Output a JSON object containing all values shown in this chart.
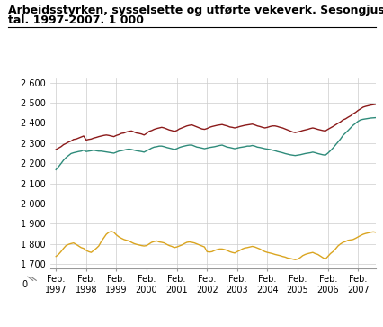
{
  "title_line1": "Arbeidsstyrken, sysselsette og utførte vekeverk. Sesongjusterte",
  "title_line2": "tal. 1997-2007. 1 000",
  "title_fontsize": 9.0,
  "ylim": [
    1680,
    2620
  ],
  "yticks": [
    1700,
    1800,
    1900,
    2000,
    2100,
    2200,
    2300,
    2400,
    2500,
    2600
  ],
  "ytick_labels": [
    "1 700",
    "1 800",
    "1 900",
    "2 000",
    "2 100",
    "2 200",
    "2 300",
    "2 400",
    "2 500",
    "2 600"
  ],
  "y0_label": "0",
  "xtick_years": [
    1997,
    1998,
    1999,
    2000,
    2001,
    2002,
    2003,
    2004,
    2005,
    2006,
    2007
  ],
  "line_arbeidsstyrken_color": "#8B1A1A",
  "line_sysselsette_color": "#2E8B7A",
  "line_vekeverk_color": "#DAA520",
  "legend_labels": [
    "Arbeidsstyrken",
    "Sysselsette",
    "Utførte vekeverk"
  ],
  "background_color": "#ffffff",
  "grid_color": "#cccccc",
  "arbeidsstyrken": [
    2268,
    2275,
    2282,
    2292,
    2298,
    2305,
    2310,
    2318,
    2320,
    2325,
    2330,
    2335,
    2315,
    2318,
    2320,
    2325,
    2328,
    2332,
    2335,
    2338,
    2340,
    2338,
    2335,
    2332,
    2338,
    2342,
    2348,
    2350,
    2355,
    2358,
    2360,
    2355,
    2350,
    2348,
    2345,
    2340,
    2348,
    2358,
    2362,
    2368,
    2372,
    2375,
    2378,
    2375,
    2370,
    2365,
    2362,
    2358,
    2362,
    2370,
    2375,
    2380,
    2385,
    2388,
    2390,
    2385,
    2380,
    2375,
    2370,
    2368,
    2372,
    2378,
    2382,
    2385,
    2388,
    2390,
    2392,
    2388,
    2385,
    2380,
    2378,
    2375,
    2378,
    2382,
    2385,
    2388,
    2390,
    2392,
    2394,
    2390,
    2385,
    2382,
    2378,
    2375,
    2378,
    2382,
    2385,
    2385,
    2382,
    2378,
    2375,
    2370,
    2365,
    2360,
    2355,
    2352,
    2355,
    2358,
    2362,
    2365,
    2368,
    2372,
    2375,
    2372,
    2368,
    2365,
    2362,
    2360,
    2368,
    2375,
    2382,
    2390,
    2398,
    2405,
    2415,
    2420,
    2428,
    2435,
    2445,
    2452,
    2462,
    2470,
    2478,
    2482,
    2485,
    2488,
    2490,
    2492,
    2493,
    2494,
    2495,
    2478
  ],
  "sysselsette": [
    2168,
    2182,
    2198,
    2215,
    2228,
    2238,
    2248,
    2252,
    2255,
    2258,
    2260,
    2265,
    2258,
    2260,
    2262,
    2265,
    2262,
    2260,
    2260,
    2258,
    2256,
    2254,
    2252,
    2250,
    2255,
    2260,
    2262,
    2265,
    2268,
    2270,
    2268,
    2265,
    2262,
    2260,
    2258,
    2255,
    2262,
    2268,
    2275,
    2280,
    2282,
    2285,
    2285,
    2282,
    2278,
    2275,
    2272,
    2268,
    2272,
    2278,
    2282,
    2285,
    2288,
    2290,
    2290,
    2285,
    2280,
    2278,
    2275,
    2272,
    2275,
    2278,
    2280,
    2282,
    2285,
    2288,
    2290,
    2285,
    2280,
    2278,
    2275,
    2272,
    2275,
    2278,
    2280,
    2282,
    2285,
    2285,
    2288,
    2285,
    2280,
    2278,
    2275,
    2272,
    2270,
    2268,
    2265,
    2262,
    2258,
    2255,
    2252,
    2248,
    2245,
    2242,
    2240,
    2238,
    2240,
    2242,
    2245,
    2248,
    2250,
    2252,
    2255,
    2252,
    2248,
    2245,
    2242,
    2240,
    2250,
    2262,
    2275,
    2290,
    2305,
    2320,
    2338,
    2350,
    2362,
    2375,
    2388,
    2398,
    2408,
    2415,
    2418,
    2420,
    2422,
    2424,
    2425,
    2426,
    2427,
    2408,
    2405,
    2402
  ],
  "vekeverk": [
    1738,
    1748,
    1762,
    1778,
    1792,
    1798,
    1802,
    1805,
    1798,
    1790,
    1782,
    1778,
    1768,
    1762,
    1758,
    1768,
    1778,
    1790,
    1812,
    1830,
    1848,
    1858,
    1862,
    1858,
    1845,
    1835,
    1828,
    1822,
    1818,
    1815,
    1808,
    1802,
    1798,
    1795,
    1792,
    1790,
    1792,
    1800,
    1808,
    1812,
    1815,
    1810,
    1808,
    1805,
    1798,
    1792,
    1788,
    1782,
    1785,
    1790,
    1795,
    1802,
    1808,
    1810,
    1808,
    1805,
    1800,
    1795,
    1790,
    1785,
    1762,
    1760,
    1762,
    1768,
    1772,
    1775,
    1775,
    1772,
    1768,
    1762,
    1758,
    1755,
    1762,
    1768,
    1775,
    1780,
    1782,
    1785,
    1788,
    1785,
    1780,
    1775,
    1768,
    1762,
    1758,
    1755,
    1752,
    1748,
    1745,
    1742,
    1738,
    1735,
    1730,
    1728,
    1725,
    1722,
    1725,
    1732,
    1742,
    1748,
    1752,
    1755,
    1758,
    1752,
    1748,
    1740,
    1732,
    1725,
    1738,
    1752,
    1762,
    1775,
    1790,
    1800,
    1808,
    1812,
    1818,
    1820,
    1822,
    1828,
    1835,
    1842,
    1848,
    1852,
    1855,
    1858,
    1860,
    1858,
    1855,
    1850,
    1845,
    1840
  ]
}
